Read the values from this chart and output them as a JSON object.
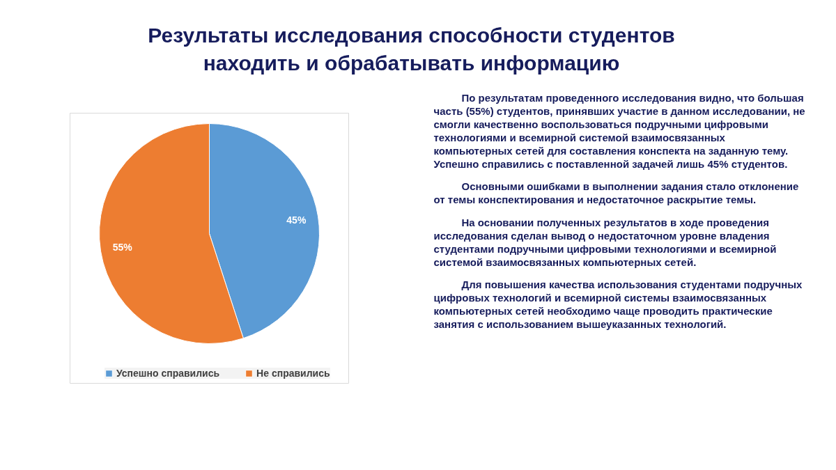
{
  "chart_data": {
    "type": "pie",
    "title": "Результаты исследования способности студентов находить и обрабатывать информацию",
    "categories": [
      "Успешно справились",
      "Не справились"
    ],
    "values": [
      45,
      55
    ],
    "colors": [
      "#5b9bd5",
      "#ed7d31"
    ],
    "value_labels": [
      "45%",
      "55%"
    ],
    "legend": "bottom",
    "annotations": [
      "По результатам проведенного исследования видно, что большая часть (55%) студентов, принявших участие в данном исследовании, не смогли качественно воспользоваться подручными цифровыми технологиями и всемирной системой взаимосвязанных компьютерных сетей для составления конспекта на заданную тему. Успешно справились с поставленной задачей лишь 45% студентов.",
      "Основными ошибками в выполнении задания стало отклонение от темы конспектирования и недостаточное раскрытие темы.",
      "На основании полученных результатов в ходе проведения исследования сделан вывод о недостаточном уровне владения студентами подручными цифровыми технологиями и всемирной системой взаимосвязанных компьютерных сетей.",
      "Для повышения качества использования студентами подручных цифровых технологий и всемирной системы взаимосвязанных компьютерных сетей необходимо чаще проводить практические занятия с использованием вышеуказанных технологий."
    ]
  }
}
